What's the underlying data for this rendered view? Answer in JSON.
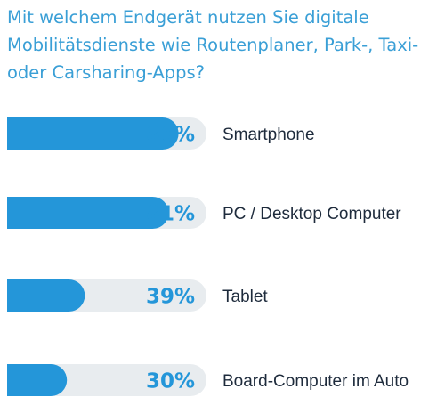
{
  "chart_data": {
    "type": "bar",
    "orientation": "horizontal",
    "title_lines": [
      "Mit welchem Endgerät nutzen Sie digitale",
      "Mobilitätsdienste wie Routenplaner, Park-, Taxi-",
      "oder Carsharing-Apps?"
    ],
    "categories": [
      "Smartphone",
      "PC / Desktop Computer",
      "Tablet",
      "Board-Computer im Auto"
    ],
    "values": [
      86,
      81,
      39,
      30
    ],
    "value_labels": [
      "86%",
      "81%",
      "39%",
      "30%"
    ],
    "xlim": [
      0,
      100
    ],
    "grid": false,
    "legend": "none"
  },
  "colors": {
    "bar": "#2496d9",
    "track": "#e8ecef",
    "title": "#3a9fd6",
    "label": "#1e2b3c"
  }
}
